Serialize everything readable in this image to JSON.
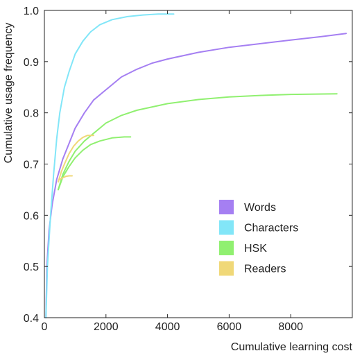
{
  "chart_data": {
    "type": "line",
    "title": "",
    "xlabel": "Cumulative learning cost",
    "ylabel": "Cumulative usage frequency",
    "xlim": [
      0,
      10000
    ],
    "ylim": [
      0.4,
      1.0
    ],
    "xticks": [
      "0",
      "2000",
      "4000",
      "6000",
      "8000"
    ],
    "xtick_values": [
      0,
      2000,
      4000,
      6000,
      8000
    ],
    "yticks": [
      "0.4",
      "0.5",
      "0.6",
      "0.7",
      "0.8",
      "0.9",
      "1.0"
    ],
    "ytick_values": [
      0.4,
      0.5,
      0.6,
      0.7,
      0.8,
      0.9,
      1.0
    ],
    "grid": false,
    "legend_position": "bottom-right",
    "series": [
      {
        "name": "Words",
        "color": "#a57ff2",
        "points": [
          [
            50,
            0.4
          ],
          [
            80,
            0.5
          ],
          [
            150,
            0.57
          ],
          [
            250,
            0.62
          ],
          [
            400,
            0.67
          ],
          [
            600,
            0.71
          ],
          [
            800,
            0.74
          ],
          [
            1000,
            0.77
          ],
          [
            1300,
            0.8
          ],
          [
            1600,
            0.825
          ],
          [
            2000,
            0.845
          ],
          [
            2500,
            0.87
          ],
          [
            3000,
            0.885
          ],
          [
            3500,
            0.897
          ],
          [
            4000,
            0.905
          ],
          [
            5000,
            0.918
          ],
          [
            6000,
            0.928
          ],
          [
            7000,
            0.935
          ],
          [
            8000,
            0.942
          ],
          [
            9000,
            0.949
          ],
          [
            9800,
            0.955
          ]
        ]
      },
      {
        "name": "Characters",
        "color": "#82e6f8",
        "points": [
          [
            50,
            0.4
          ],
          [
            100,
            0.5
          ],
          [
            200,
            0.6
          ],
          [
            300,
            0.68
          ],
          [
            400,
            0.75
          ],
          [
            500,
            0.8
          ],
          [
            650,
            0.85
          ],
          [
            800,
            0.88
          ],
          [
            1000,
            0.915
          ],
          [
            1250,
            0.94
          ],
          [
            1500,
            0.958
          ],
          [
            1800,
            0.972
          ],
          [
            2200,
            0.982
          ],
          [
            2700,
            0.988
          ],
          [
            3200,
            0.991
          ],
          [
            3700,
            0.993
          ],
          [
            4200,
            0.993
          ]
        ]
      },
      {
        "name": "HSK",
        "color": "#90f070",
        "points": [
          [
            450,
            0.65
          ],
          [
            600,
            0.68
          ],
          [
            800,
            0.705
          ],
          [
            1000,
            0.725
          ],
          [
            1300,
            0.745
          ],
          [
            1600,
            0.76
          ],
          [
            2000,
            0.78
          ],
          [
            2500,
            0.795
          ],
          [
            3000,
            0.805
          ],
          [
            4000,
            0.818
          ],
          [
            5000,
            0.826
          ],
          [
            6000,
            0.831
          ],
          [
            7000,
            0.834
          ],
          [
            8000,
            0.836
          ],
          [
            9500,
            0.837
          ]
        ]
      },
      {
        "name": "HSK",
        "color": "#90f070",
        "points": [
          [
            450,
            0.65
          ],
          [
            600,
            0.675
          ],
          [
            800,
            0.695
          ],
          [
            1000,
            0.712
          ],
          [
            1250,
            0.727
          ],
          [
            1500,
            0.738
          ],
          [
            1800,
            0.745
          ],
          [
            2200,
            0.751
          ],
          [
            2600,
            0.753
          ],
          [
            2800,
            0.753
          ]
        ]
      },
      {
        "name": "Readers",
        "color": "#f0d878",
        "points": [
          [
            450,
            0.665
          ],
          [
            550,
            0.685
          ],
          [
            650,
            0.7
          ],
          [
            800,
            0.72
          ],
          [
            950,
            0.735
          ],
          [
            1100,
            0.745
          ],
          [
            1250,
            0.752
          ],
          [
            1400,
            0.756
          ],
          [
            1600,
            0.756
          ]
        ]
      },
      {
        "name": "Readers",
        "color": "#f0d878",
        "points": [
          [
            500,
            0.67
          ],
          [
            600,
            0.673
          ],
          [
            700,
            0.676
          ],
          [
            800,
            0.677
          ],
          [
            900,
            0.677
          ]
        ]
      }
    ],
    "legend": [
      {
        "name": "Words",
        "color": "#a57ff2"
      },
      {
        "name": "Characters",
        "color": "#82e6f8"
      },
      {
        "name": "HSK",
        "color": "#90f070"
      },
      {
        "name": "Readers",
        "color": "#f0d878"
      }
    ]
  }
}
